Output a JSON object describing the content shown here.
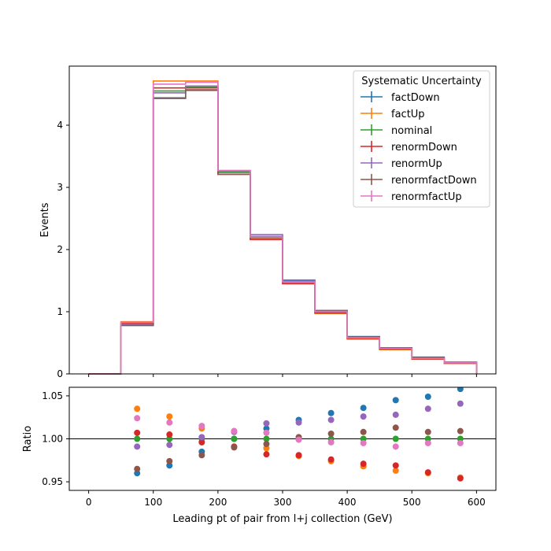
{
  "chart_data": [
    {
      "type": "histogram-step",
      "ylabel": "Events",
      "xlim": [
        -30,
        630
      ],
      "ylim": [
        0,
        4.95
      ],
      "yticks": [
        0,
        1,
        2,
        3,
        4
      ],
      "bin_edges": [
        0,
        50,
        100,
        150,
        200,
        250,
        300,
        350,
        400,
        450,
        500,
        550,
        600
      ],
      "legend": {
        "title": "Systematic Uncertainty",
        "location": "top-right"
      },
      "grid": false,
      "series": [
        {
          "name": "factDown",
          "color": "#1f77b4",
          "values": [
            0,
            0.78,
            4.44,
            4.57,
            3.26,
            2.21,
            1.5,
            1.02,
            0.6,
            0.42,
            0.27,
            0.19
          ]
        },
        {
          "name": "factUp",
          "color": "#ff7f0e",
          "values": [
            0,
            0.84,
            4.71,
            4.71,
            3.27,
            2.18,
            1.46,
            0.97,
            0.56,
            0.39,
            0.24,
            0.17
          ]
        },
        {
          "name": "nominal",
          "color": "#2ca02c",
          "values": [
            0,
            0.81,
            4.55,
            4.62,
            3.24,
            2.2,
            1.48,
            1.0,
            0.58,
            0.41,
            0.25,
            0.18
          ]
        },
        {
          "name": "renormDown",
          "color": "#d62728",
          "values": [
            0,
            0.82,
            4.6,
            4.6,
            3.21,
            2.16,
            1.45,
            0.98,
            0.57,
            0.4,
            0.24,
            0.17
          ]
        },
        {
          "name": "renormUp",
          "color": "#9467bd",
          "values": [
            0,
            0.8,
            4.52,
            4.63,
            3.27,
            2.24,
            1.51,
            1.02,
            0.59,
            0.42,
            0.26,
            0.19
          ]
        },
        {
          "name": "renormfactDown",
          "color": "#8c564b",
          "values": [
            0,
            0.78,
            4.43,
            4.56,
            3.21,
            2.19,
            1.48,
            1.01,
            0.59,
            0.42,
            0.26,
            0.18
          ]
        },
        {
          "name": "renormfactUp",
          "color": "#e377c2",
          "values": [
            0,
            0.83,
            4.66,
            4.69,
            3.27,
            2.2,
            1.48,
            1.0,
            0.58,
            0.41,
            0.25,
            0.18
          ]
        }
      ]
    },
    {
      "type": "scatter",
      "xlabel": "Leading pt of pair from l+j collection (GeV)",
      "ylabel": "Ratio",
      "xlim": [
        -30,
        630
      ],
      "ylim": [
        0.94,
        1.06
      ],
      "xticks": [
        0,
        100,
        200,
        300,
        400,
        500,
        600
      ],
      "yticks": [
        0.95,
        1.0,
        1.05
      ],
      "ytick_labels": [
        "0.95",
        "1.00",
        "1.05"
      ],
      "reference_line": 1.0,
      "x": [
        75,
        125,
        175,
        225,
        275,
        325,
        375,
        425,
        475,
        525,
        575
      ],
      "series": [
        {
          "name": "factDown",
          "color": "#1f77b4",
          "values": [
            0.96,
            0.969,
            0.985,
            1.0,
            1.012,
            1.022,
            1.03,
            1.036,
            1.045,
            1.049,
            1.058
          ]
        },
        {
          "name": "factUp",
          "color": "#ff7f0e",
          "values": [
            1.035,
            1.026,
            1.012,
            1.009,
            0.989,
            0.98,
            0.974,
            0.968,
            0.963,
            0.96,
            0.955
          ]
        },
        {
          "name": "nominal",
          "color": "#2ca02c",
          "values": [
            1.0,
            1.0,
            1.0,
            1.0,
            1.0,
            1.0,
            1.0,
            1.0,
            1.0,
            1.0,
            1.0
          ]
        },
        {
          "name": "renormDown",
          "color": "#d62728",
          "values": [
            1.007,
            1.005,
            0.996,
            0.991,
            0.982,
            0.981,
            0.976,
            0.971,
            0.969,
            0.961,
            0.954
          ]
        },
        {
          "name": "renormUp",
          "color": "#9467bd",
          "values": [
            0.991,
            0.993,
            1.002,
            1.008,
            1.018,
            1.019,
            1.022,
            1.026,
            1.028,
            1.035,
            1.041
          ]
        },
        {
          "name": "renormfactDown",
          "color": "#8c564b",
          "values": [
            0.965,
            0.974,
            0.981,
            0.99,
            0.994,
            1.002,
            1.006,
            1.008,
            1.013,
            1.008,
            1.009
          ]
        },
        {
          "name": "renormfactUp",
          "color": "#e377c2",
          "values": [
            1.024,
            1.019,
            1.015,
            1.009,
            1.007,
            0.999,
            0.996,
            0.995,
            0.991,
            0.995,
            0.995
          ]
        }
      ]
    }
  ]
}
